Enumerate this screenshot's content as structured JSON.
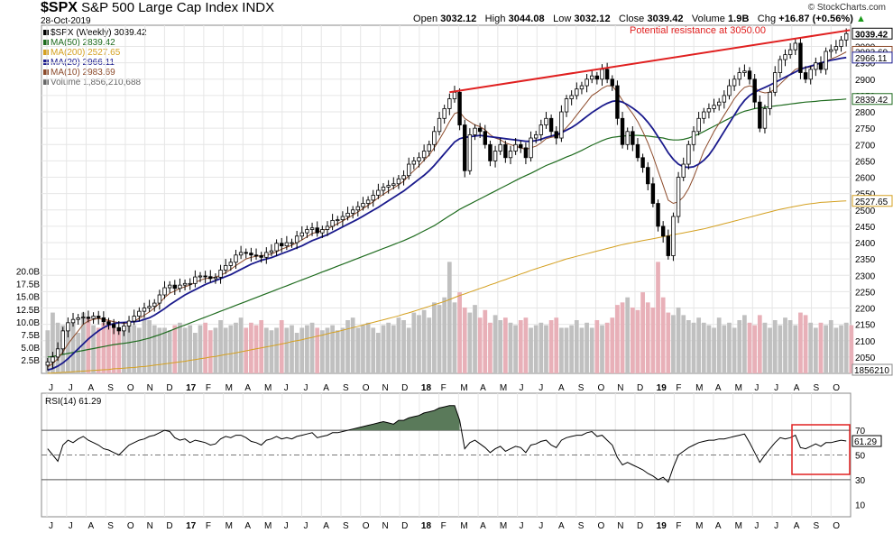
{
  "header": {
    "symbol": "$SPX",
    "description": "S&P 500 Large Cap Index",
    "exchange": "INDX",
    "date": "28-Oct-2019",
    "open_label": "Open",
    "open": "3032.12",
    "high_label": "High",
    "high": "3044.08",
    "low_label": "Low",
    "low": "3032.12",
    "close_label": "Close",
    "close": "3039.42",
    "volume_label": "Volume",
    "volume": "1.9B",
    "chg_label": "Chg",
    "chg": "+16.87 (+0.56%)",
    "chg_arrow": "▲",
    "credit": "© StockCharts.com"
  },
  "legend": [
    {
      "text": "$SPX (Weekly) 3039.42",
      "color": "#000000"
    },
    {
      "text": "MA(50) 2839.42",
      "color": "#1e6b1e"
    },
    {
      "text": "MA(200) 2527.65",
      "color": "#d4a020"
    },
    {
      "text": "MA(20) 2966.11",
      "color": "#1a1a8c"
    },
    {
      "text": "MA(10) 2983.69",
      "color": "#8c4a2a"
    },
    {
      "text": "Volume 1,856,210,688",
      "color": "#666666"
    }
  ],
  "annotation": "Potential resistance at 3050.00",
  "colors": {
    "up": "#000000",
    "down": "#000000",
    "vol_up": "#c0c0c0",
    "vol_down": "#e8b0b8",
    "ma50": "#1e6b1e",
    "ma200": "#d4a020",
    "ma20": "#1a1a8c",
    "ma10": "#8c4a2a",
    "resistance": "#e02020",
    "rsi_fill": "#5a7a5a",
    "box": "#e02020"
  },
  "chart_data": {
    "type": "candlestick",
    "timeframe": "weekly",
    "price_axis": {
      "ticks": [
        2050,
        2100,
        2150,
        2200,
        2250,
        2300,
        2350,
        2400,
        2450,
        2500,
        2550,
        2600,
        2650,
        2700,
        2750,
        2800,
        2850,
        2900,
        2950,
        3000
      ],
      "ylim": [
        2000,
        3065
      ]
    },
    "volume_axis": {
      "ticks": [
        "2.5B",
        "5.0B",
        "7.5B",
        "10.0B",
        "12.5B",
        "15.0B",
        "17.5B",
        "20.0B"
      ],
      "ylim": [
        0,
        21
      ]
    },
    "time_labels": [
      "J",
      "J",
      "A",
      "S",
      "O",
      "N",
      "D",
      "17",
      "F",
      "M",
      "A",
      "M",
      "J",
      "J",
      "A",
      "S",
      "O",
      "N",
      "D",
      "18",
      "F",
      "M",
      "A",
      "M",
      "J",
      "J",
      "A",
      "S",
      "O",
      "N",
      "D",
      "19",
      "F",
      "M",
      "A",
      "M",
      "J",
      "J",
      "A",
      "S",
      "O"
    ],
    "price_value_labels": [
      {
        "text": "3039.42",
        "value": 3039.42
      },
      {
        "text": "2983.69",
        "value": 2983.69
      },
      {
        "text": "2966.11",
        "value": 2966.11
      },
      {
        "text": "2839.42",
        "value": 2839.42
      },
      {
        "text": "2527.65",
        "value": 2527.65
      }
    ],
    "volume_value_label": "1856210",
    "closes": [
      2035,
      2050,
      2075,
      2130,
      2155,
      2165,
      2170,
      2172,
      2168,
      2175,
      2170,
      2158,
      2150,
      2140,
      2130,
      2145,
      2160,
      2175,
      2190,
      2200,
      2205,
      2215,
      2240,
      2262,
      2270,
      2260,
      2270,
      2275,
      2275,
      2295,
      2298,
      2296,
      2290,
      2294,
      2316,
      2330,
      2340,
      2362,
      2370,
      2368,
      2362,
      2360,
      2355,
      2370,
      2375,
      2398,
      2390,
      2400,
      2400,
      2420,
      2430,
      2440,
      2445,
      2430,
      2440,
      2450,
      2468,
      2470,
      2480,
      2490,
      2500,
      2510,
      2520,
      2530,
      2545,
      2560,
      2570,
      2575,
      2580,
      2595,
      2605,
      2640,
      2650,
      2660,
      2680,
      2700,
      2740,
      2780,
      2810,
      2840,
      2860,
      2760,
      2620,
      2730,
      2750,
      2740,
      2700,
      2650,
      2680,
      2700,
      2660,
      2680,
      2700,
      2690,
      2660,
      2720,
      2730,
      2760,
      2780,
      2740,
      2720,
      2800,
      2840,
      2850,
      2870,
      2880,
      2900,
      2910,
      2900,
      2930,
      2900,
      2880,
      2780,
      2700,
      2740,
      2700,
      2660,
      2630,
      2580,
      2520,
      2450,
      2420,
      2360,
      2480,
      2600,
      2640,
      2700,
      2740,
      2780,
      2800,
      2810,
      2820,
      2830,
      2850,
      2880,
      2900,
      2920,
      2925,
      2900,
      2830,
      2750,
      2810,
      2860,
      2920,
      2960,
      2975,
      2990,
      3010,
      2920,
      2900,
      2930,
      2950,
      2930,
      2985,
      2990,
      3000,
      3020,
      3039.42
    ],
    "ma10": [
      2020,
      2030,
      2045,
      2065,
      2090,
      2110,
      2130,
      2150,
      2160,
      2165,
      2168,
      2165,
      2162,
      2158,
      2155,
      2152,
      2155,
      2160,
      2168,
      2178,
      2188,
      2200,
      2215,
      2232,
      2245,
      2252,
      2260,
      2265,
      2270,
      2278,
      2285,
      2290,
      2292,
      2295,
      2300,
      2308,
      2318,
      2330,
      2340,
      2350,
      2355,
      2358,
      2360,
      2362,
      2365,
      2372,
      2380,
      2386,
      2392,
      2400,
      2408,
      2418,
      2428,
      2432,
      2437,
      2442,
      2450,
      2458,
      2466,
      2475,
      2484,
      2494,
      2504,
      2514,
      2525,
      2537,
      2548,
      2558,
      2567,
      2577,
      2588,
      2605,
      2620,
      2635,
      2652,
      2668,
      2690,
      2715,
      2742,
      2770,
      2795,
      2800,
      2780,
      2770,
      2760,
      2755,
      2745,
      2730,
      2720,
      2715,
      2705,
      2700,
      2695,
      2690,
      2685,
      2690,
      2695,
      2705,
      2718,
      2722,
      2725,
      2735,
      2752,
      2770,
      2790,
      2810,
      2830,
      2850,
      2860,
      2872,
      2880,
      2880,
      2860,
      2835,
      2815,
      2795,
      2770,
      2740,
      2705,
      2665,
      2620,
      2575,
      2530,
      2520,
      2525,
      2540,
      2565,
      2600,
      2640,
      2680,
      2710,
      2740,
      2765,
      2790,
      2815,
      2840,
      2860,
      2875,
      2880,
      2875,
      2862,
      2858,
      2860,
      2870,
      2885,
      2900,
      2915,
      2930,
      2935,
      2935,
      2937,
      2945,
      2948,
      2955,
      2962,
      2968,
      2975,
      2983.69
    ],
    "ma20": [
      2010,
      2015,
      2022,
      2032,
      2045,
      2060,
      2075,
      2090,
      2105,
      2118,
      2130,
      2140,
      2148,
      2152,
      2155,
      2156,
      2157,
      2158,
      2160,
      2165,
      2170,
      2178,
      2188,
      2198,
      2210,
      2220,
      2230,
      2240,
      2248,
      2256,
      2264,
      2272,
      2278,
      2284,
      2290,
      2296,
      2302,
      2310,
      2318,
      2326,
      2334,
      2340,
      2346,
      2350,
      2354,
      2360,
      2366,
      2372,
      2378,
      2384,
      2390,
      2398,
      2406,
      2412,
      2418,
      2424,
      2432,
      2440,
      2448,
      2456,
      2464,
      2472,
      2481,
      2490,
      2499,
      2508,
      2518,
      2528,
      2538,
      2548,
      2558,
      2570,
      2582,
      2594,
      2606,
      2620,
      2636,
      2654,
      2672,
      2690,
      2708,
      2718,
      2722,
      2724,
      2726,
      2728,
      2726,
      2724,
      2722,
      2720,
      2718,
      2716,
      2714,
      2712,
      2710,
      2710,
      2712,
      2716,
      2722,
      2726,
      2730,
      2736,
      2744,
      2752,
      2762,
      2774,
      2786,
      2798,
      2808,
      2818,
      2826,
      2832,
      2834,
      2830,
      2822,
      2812,
      2800,
      2786,
      2768,
      2748,
      2724,
      2700,
      2675,
      2655,
      2640,
      2632,
      2630,
      2632,
      2640,
      2652,
      2668,
      2690,
      2715,
      2740,
      2765,
      2790,
      2815,
      2835,
      2850,
      2860,
      2868,
      2875,
      2882,
      2890,
      2898,
      2906,
      2914,
      2922,
      2930,
      2936,
      2940,
      2945,
      2950,
      2954,
      2958,
      2961,
      2964,
      2966.11
    ],
    "ma50": [
      2050,
      2052,
      2055,
      2058,
      2061,
      2064,
      2067,
      2070,
      2073,
      2076,
      2079,
      2082,
      2085,
      2088,
      2090,
      2092,
      2094,
      2097,
      2100,
      2104,
      2108,
      2113,
      2118,
      2124,
      2130,
      2136,
      2142,
      2148,
      2154,
      2160,
      2166,
      2172,
      2178,
      2184,
      2190,
      2196,
      2202,
      2208,
      2214,
      2220,
      2226,
      2232,
      2238,
      2244,
      2250,
      2256,
      2262,
      2268,
      2274,
      2280,
      2286,
      2292,
      2298,
      2304,
      2310,
      2316,
      2322,
      2328,
      2334,
      2340,
      2346,
      2352,
      2358,
      2364,
      2370,
      2376,
      2382,
      2388,
      2394,
      2400,
      2406,
      2413,
      2420,
      2428,
      2436,
      2444,
      2452,
      2462,
      2472,
      2482,
      2492,
      2502,
      2510,
      2518,
      2526,
      2534,
      2542,
      2550,
      2558,
      2566,
      2574,
      2582,
      2590,
      2598,
      2605,
      2612,
      2620,
      2628,
      2636,
      2642,
      2648,
      2655,
      2662,
      2668,
      2675,
      2682,
      2690,
      2698,
      2705,
      2712,
      2718,
      2722,
      2724,
      2726,
      2727,
      2728,
      2728,
      2727,
      2726,
      2724,
      2722,
      2720,
      2716,
      2714,
      2714,
      2716,
      2720,
      2726,
      2732,
      2740,
      2748,
      2756,
      2764,
      2772,
      2780,
      2788,
      2796,
      2802,
      2806,
      2810,
      2812,
      2814,
      2816,
      2818,
      2820,
      2822,
      2824,
      2826,
      2828,
      2830,
      2831,
      2832,
      2834,
      2835,
      2836,
      2837,
      2838,
      2839.42
    ],
    "ma200": [
      2000,
      2001,
      2002,
      2003,
      2004,
      2005,
      2006,
      2007,
      2008,
      2009,
      2010,
      2011,
      2012,
      2014,
      2015,
      2016,
      2017,
      2018,
      2020,
      2021,
      2023,
      2025,
      2027,
      2029,
      2031,
      2033,
      2035,
      2037,
      2040,
      2042,
      2045,
      2047,
      2050,
      2052,
      2055,
      2058,
      2060,
      2063,
      2066,
      2069,
      2072,
      2075,
      2078,
      2081,
      2084,
      2087,
      2090,
      2093,
      2097,
      2100,
      2103,
      2107,
      2110,
      2114,
      2117,
      2121,
      2125,
      2128,
      2132,
      2136,
      2140,
      2144,
      2148,
      2152,
      2156,
      2160,
      2164,
      2168,
      2172,
      2176,
      2181,
      2185,
      2190,
      2195,
      2200,
      2205,
      2210,
      2215,
      2220,
      2226,
      2232,
      2238,
      2243,
      2249,
      2254,
      2260,
      2265,
      2271,
      2276,
      2282,
      2287,
      2293,
      2298,
      2304,
      2309,
      2315,
      2320,
      2325,
      2330,
      2335,
      2340,
      2345,
      2350,
      2354,
      2358,
      2362,
      2366,
      2370,
      2374,
      2378,
      2382,
      2386,
      2390,
      2394,
      2397,
      2400,
      2403,
      2406,
      2409,
      2412,
      2415,
      2418,
      2421,
      2424,
      2427,
      2430,
      2433,
      2436,
      2439,
      2442,
      2446,
      2450,
      2454,
      2458,
      2462,
      2466,
      2470,
      2474,
      2478,
      2482,
      2486,
      2490,
      2494,
      2498,
      2502,
      2505,
      2508,
      2511,
      2514,
      2517,
      2519,
      2521,
      2523,
      2524,
      2525,
      2526,
      2527,
      2527.65
    ],
    "volumes": [
      8.5,
      12.0,
      10.0,
      9.5,
      9.0,
      10.5,
      8.0,
      12.0,
      11.0,
      9.5,
      9.0,
      10.0,
      10.5,
      9.0,
      8.5,
      9.0,
      10.0,
      9.5,
      9.0,
      11.0,
      10.5,
      9.5,
      9.0,
      9.0,
      8.5,
      9.5,
      10.0,
      9.0,
      9.5,
      8.0,
      9.5,
      10.0,
      8.5,
      9.0,
      10.5,
      9.0,
      9.5,
      10.0,
      11.0,
      9.0,
      10.0,
      9.5,
      10.5,
      9.0,
      8.5,
      9.0,
      10.5,
      9.0,
      9.5,
      8.0,
      9.0,
      9.5,
      10.0,
      9.0,
      8.5,
      9.0,
      9.5,
      8.5,
      9.0,
      10.5,
      11.0,
      9.0,
      9.5,
      10.0,
      9.0,
      8.0,
      9.5,
      10.0,
      9.5,
      11.0,
      10.5,
      9.0,
      12.0,
      11.5,
      12.5,
      11.0,
      14.0,
      13.5,
      15.0,
      22.0,
      14.0,
      16.0,
      13.0,
      12.0,
      13.5,
      11.0,
      12.5,
      10.0,
      11.5,
      10.5,
      11.0,
      10.0,
      9.5,
      10.5,
      11.0,
      9.0,
      9.5,
      10.0,
      9.5,
      10.5,
      11.0,
      9.0,
      9.0,
      9.5,
      10.5,
      9.0,
      10.0,
      9.0,
      10.5,
      9.5,
      10.0,
      11.0,
      13.5,
      14.0,
      15.0,
      13.0,
      12.5,
      16.0,
      14.0,
      13.0,
      22.0,
      15.0,
      12.0,
      11.5,
      13.0,
      11.5,
      10.5,
      10.0,
      11.0,
      10.0,
      9.5,
      9.0,
      11.0,
      9.5,
      10.0,
      9.0,
      10.5,
      11.5,
      10.0,
      9.5,
      11.5,
      10.0,
      9.0,
      10.5,
      9.5,
      11.0,
      10.5,
      9.5,
      12.0,
      11.5,
      10.0,
      9.0,
      10.0,
      9.5,
      10.5,
      9.0,
      9.5,
      10.0,
      9.5,
      1.86
    ],
    "rsi": {
      "label": "RSI(14) 61.29",
      "last": 61.29,
      "ticks": [
        10,
        30,
        50,
        70
      ],
      "ylim": [
        0,
        100
      ],
      "levels": [
        30,
        50,
        70
      ],
      "values": [
        55,
        50,
        45,
        58,
        62,
        60,
        63,
        65,
        62,
        60,
        58,
        55,
        54,
        52,
        50,
        54,
        58,
        60,
        62,
        63,
        65,
        66,
        68,
        70,
        69,
        64,
        62,
        63,
        60,
        62,
        61,
        60,
        58,
        59,
        63,
        65,
        64,
        66,
        66,
        64,
        61,
        60,
        58,
        62,
        63,
        65,
        63,
        64,
        63,
        65,
        66,
        67,
        68,
        64,
        65,
        66,
        68,
        68,
        69,
        70,
        71,
        72,
        73,
        74,
        75,
        76,
        77,
        76,
        75,
        78,
        78,
        80,
        81,
        82,
        84,
        85,
        86,
        88,
        89,
        90,
        90,
        78,
        55,
        60,
        62,
        59,
        56,
        52,
        55,
        57,
        53,
        55,
        57,
        56,
        52,
        58,
        59,
        61,
        62,
        58,
        56,
        62,
        64,
        65,
        66,
        66,
        68,
        69,
        65,
        66,
        62,
        58,
        48,
        42,
        44,
        42,
        40,
        38,
        35,
        33,
        30,
        32,
        28,
        40,
        50,
        53,
        56,
        58,
        60,
        61,
        62,
        62,
        63,
        63,
        64,
        65,
        66,
        67,
        60,
        52,
        44,
        50,
        55,
        60,
        64,
        63,
        64,
        66,
        56,
        55,
        57,
        59,
        57,
        60,
        60,
        61,
        62,
        61.29
      ]
    }
  }
}
